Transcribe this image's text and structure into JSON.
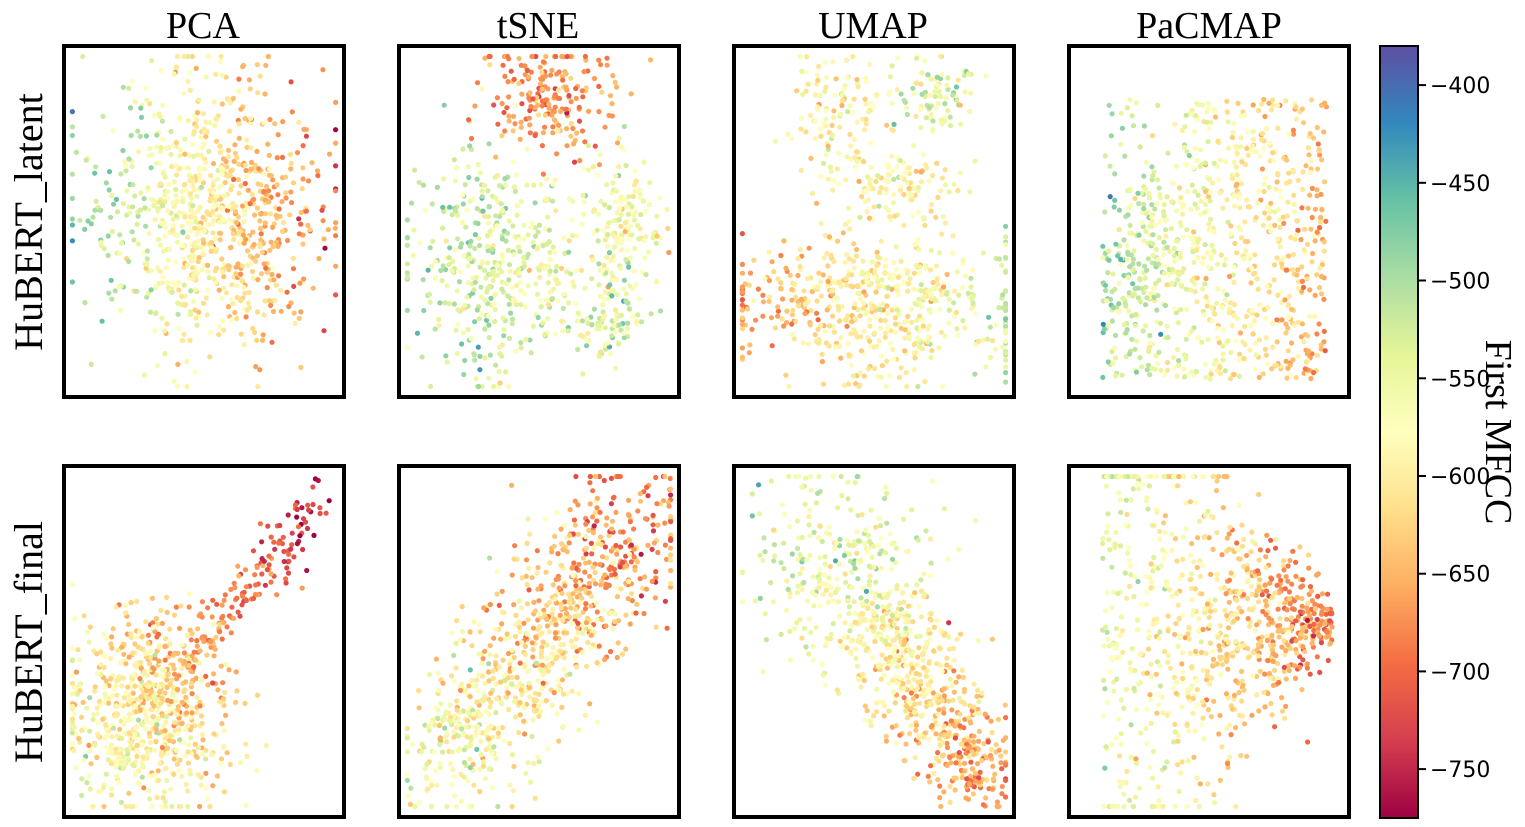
{
  "chart_data": {
    "type": "scatter",
    "columns": [
      "PCA",
      "tSNE",
      "UMAP",
      "PaCMAP"
    ],
    "rows": [
      "HuBERT_latent",
      "HuBERT_final"
    ],
    "x_axis_ticks": "none",
    "y_axis_ticks": "none",
    "colorbar": {
      "label": "First MFCC",
      "colormap": "Spectral",
      "range": [
        -775,
        -380
      ],
      "ticks": [
        -400,
        -450,
        -500,
        -550,
        -600,
        -650,
        -700,
        -750
      ],
      "tick_labels": [
        "−400",
        "−450",
        "−500",
        "−550",
        "−600",
        "−650",
        "−700",
        "−750"
      ]
    },
    "points_per_panel": 900,
    "panels": [
      {
        "row": 0,
        "col": 0,
        "embedding": "PCA",
        "model": "HuBERT_latent",
        "shape": "ellipse blob, low values (green/blue) on left, high values (orange/red) on right"
      },
      {
        "row": 0,
        "col": 1,
        "embedding": "tSNE",
        "model": "HuBERT_latent",
        "shape": "top cluster orange-red, large lower cluster yellow-green, two small clusters on right"
      },
      {
        "row": 0,
        "col": 2,
        "embedding": "UMAP",
        "model": "HuBERT_latent",
        "shape": "two upper lobes, middle band, wide lower band with orange-red left end"
      },
      {
        "row": 0,
        "col": 3,
        "embedding": "PaCMAP",
        "model": "HuBERT_latent",
        "shape": "triangular shape, orange-red along right side, blue at left corners"
      },
      {
        "row": 1,
        "col": 0,
        "embedding": "PCA",
        "model": "HuBERT_final",
        "shape": "blob at lower-left with arm reaching to upper right, red at arm tip"
      },
      {
        "row": 1,
        "col": 1,
        "embedding": "tSNE",
        "model": "HuBERT_final",
        "shape": "diagonal elongated cloud, orange-red at upper right"
      },
      {
        "row": 1,
        "col": 2,
        "embedding": "UMAP",
        "model": "HuBERT_final",
        "shape": "teardrop tapering to lower right, orange toward the tail"
      },
      {
        "row": 1,
        "col": 3,
        "embedding": "PaCMAP",
        "model": "HuBERT_final",
        "shape": "triangular shape pointing right, orange toward right tip"
      }
    ]
  }
}
